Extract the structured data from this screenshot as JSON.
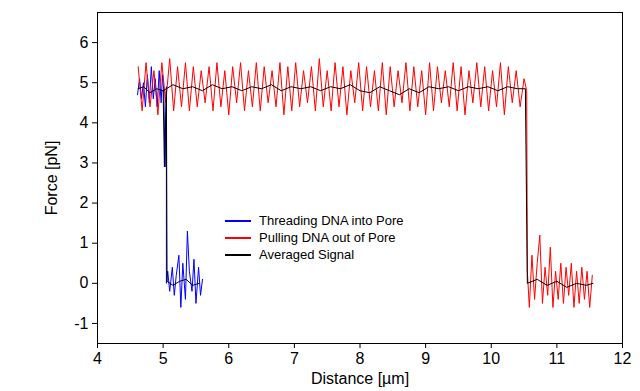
{
  "chart_data": {
    "type": "line",
    "x_label": "Distance [µm]",
    "y_label": "Force [pN]",
    "xlim": [
      4,
      12
    ],
    "xticks": [
      4,
      5,
      6,
      7,
      8,
      9,
      10,
      11,
      12
    ],
    "ylim": [
      -1.5,
      6.75
    ],
    "yticks": [
      -1,
      0,
      1,
      2,
      3,
      4,
      5,
      6
    ],
    "grid": false,
    "legend": "center",
    "series": [
      {
        "name": "Threading DNA into Pore",
        "color": "#0000ff",
        "x": [
          5.6,
          5.57,
          5.54,
          5.5,
          5.47,
          5.44,
          5.4,
          5.37,
          5.34,
          5.3,
          5.27,
          5.24,
          5.2,
          5.17,
          5.14,
          5.1,
          5.07,
          5.05,
          5.05,
          5.03,
          5.01,
          4.99,
          4.97,
          4.94,
          4.91,
          4.88,
          4.85,
          4.82,
          4.79,
          4.76,
          4.73,
          4.7,
          4.67,
          4.64,
          4.61
        ],
        "values": [
          0.1,
          -0.3,
          0.4,
          -0.5,
          0.6,
          -0.2,
          0.3,
          1.3,
          -0.4,
          0.5,
          -0.6,
          0.7,
          0.2,
          -0.3,
          0.4,
          -0.2,
          0.3,
          0.0,
          4.9,
          2.9,
          4.8,
          5.2,
          4.5,
          5.3,
          4.4,
          5.1,
          4.6,
          5.4,
          4.5,
          5.2,
          4.4,
          5.0,
          4.6,
          5.1,
          4.7
        ]
      },
      {
        "name": "Pulling DNA out of Pore",
        "color": "#ff0000",
        "x": [
          4.62,
          4.68,
          4.74,
          4.8,
          4.86,
          4.92,
          4.98,
          5.04,
          5.1,
          5.16,
          5.22,
          5.28,
          5.34,
          5.4,
          5.46,
          5.52,
          5.58,
          5.64,
          5.7,
          5.76,
          5.82,
          5.88,
          5.94,
          6.0,
          6.06,
          6.12,
          6.18,
          6.24,
          6.3,
          6.36,
          6.42,
          6.48,
          6.54,
          6.6,
          6.66,
          6.72,
          6.78,
          6.84,
          6.9,
          6.96,
          7.02,
          7.08,
          7.14,
          7.2,
          7.26,
          7.32,
          7.38,
          7.44,
          7.5,
          7.56,
          7.62,
          7.68,
          7.74,
          7.8,
          7.86,
          7.92,
          7.98,
          8.04,
          8.1,
          8.16,
          8.22,
          8.28,
          8.34,
          8.4,
          8.46,
          8.52,
          8.58,
          8.64,
          8.7,
          8.76,
          8.82,
          8.88,
          8.94,
          9.0,
          9.06,
          9.12,
          9.18,
          9.24,
          9.3,
          9.36,
          9.42,
          9.48,
          9.54,
          9.6,
          9.66,
          9.72,
          9.78,
          9.84,
          9.9,
          9.96,
          10.02,
          10.08,
          10.14,
          10.2,
          10.26,
          10.32,
          10.38,
          10.44,
          10.5,
          10.54,
          10.55,
          10.58,
          10.62,
          10.66,
          10.7,
          10.74,
          10.78,
          10.82,
          10.86,
          10.9,
          10.94,
          10.98,
          11.02,
          11.06,
          11.1,
          11.14,
          11.18,
          11.22,
          11.26,
          11.3,
          11.34,
          11.38,
          11.42,
          11.46,
          11.5,
          11.54
        ],
        "values": [
          5.4,
          4.3,
          5.5,
          4.4,
          5.3,
          4.2,
          5.5,
          4.5,
          5.6,
          4.3,
          5.4,
          4.4,
          5.5,
          4.3,
          5.4,
          4.4,
          5.3,
          4.5,
          5.4,
          4.3,
          5.5,
          4.4,
          5.3,
          4.2,
          5.4,
          4.5,
          5.5,
          4.3,
          5.3,
          4.4,
          5.5,
          4.3,
          5.4,
          4.5,
          5.3,
          4.4,
          5.5,
          4.2,
          5.4,
          4.3,
          5.5,
          4.4,
          5.3,
          4.5,
          5.4,
          4.3,
          5.6,
          4.4,
          5.3,
          4.3,
          5.5,
          4.4,
          5.4,
          4.2,
          5.3,
          4.5,
          5.5,
          4.3,
          5.4,
          4.4,
          5.3,
          4.3,
          5.5,
          4.2,
          5.4,
          4.4,
          5.3,
          4.5,
          5.5,
          4.3,
          5.4,
          4.4,
          5.3,
          4.2,
          5.5,
          4.3,
          5.4,
          4.5,
          5.3,
          4.4,
          5.5,
          4.3,
          5.4,
          4.2,
          5.3,
          4.5,
          5.5,
          4.4,
          5.4,
          4.3,
          5.3,
          4.4,
          5.5,
          4.2,
          5.4,
          4.5,
          5.3,
          4.4,
          5.1,
          4.8,
          0.3,
          -0.6,
          0.7,
          -0.4,
          0.5,
          1.2,
          -0.5,
          0.4,
          -0.3,
          0.9,
          -0.6,
          0.3,
          -0.4,
          0.5,
          -0.5,
          0.4,
          -0.3,
          0.5,
          -0.6,
          0.3,
          -0.5,
          0.4,
          -0.4,
          0.3,
          -0.6,
          0.2
        ]
      },
      {
        "name": "Averaged Signal",
        "color": "#000000",
        "x": [
          5.55,
          5.45,
          5.35,
          5.25,
          5.15,
          5.06,
          5.05,
          5.02,
          5.0,
          4.9,
          4.8,
          4.7,
          4.62,
          null,
          5.0,
          5.15,
          5.3,
          5.45,
          5.6,
          5.75,
          5.9,
          6.05,
          6.2,
          6.35,
          6.5,
          6.65,
          6.8,
          6.95,
          7.1,
          7.25,
          7.4,
          7.55,
          7.7,
          7.85,
          8.0,
          8.15,
          8.3,
          8.45,
          8.6,
          8.75,
          8.9,
          9.05,
          9.2,
          9.35,
          9.5,
          9.65,
          9.8,
          9.95,
          10.1,
          10.25,
          10.4,
          10.52,
          10.55,
          10.7,
          10.85,
          11.0,
          11.15,
          11.3,
          11.45,
          11.55
        ],
        "values": [
          0.0,
          -0.05,
          0.1,
          0.05,
          -0.05,
          0.05,
          4.8,
          2.9,
          4.8,
          4.85,
          4.75,
          4.9,
          4.85,
          null,
          4.8,
          4.95,
          4.85,
          4.9,
          4.8,
          4.95,
          4.85,
          4.9,
          4.8,
          4.9,
          4.85,
          4.95,
          4.8,
          4.9,
          4.85,
          4.9,
          4.8,
          4.9,
          4.85,
          4.95,
          4.8,
          4.75,
          4.9,
          4.8,
          4.7,
          4.85,
          4.75,
          4.9,
          4.85,
          4.9,
          4.8,
          4.9,
          4.85,
          4.9,
          4.8,
          4.9,
          4.85,
          4.85,
          0.0,
          0.1,
          -0.05,
          0.05,
          -0.1,
          0.0,
          -0.05,
          0.0
        ]
      }
    ]
  }
}
